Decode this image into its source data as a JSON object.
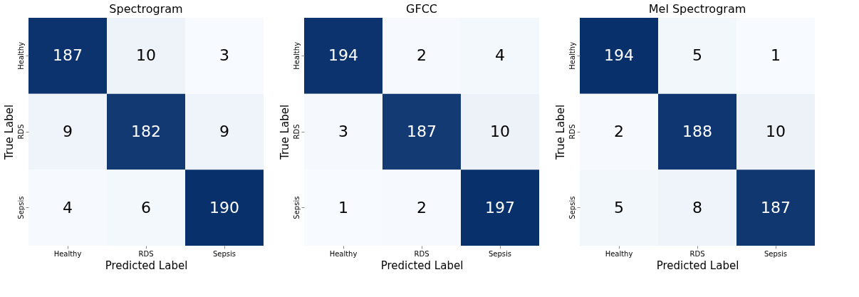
{
  "chart_data": [
    {
      "type": "heatmap",
      "title": "Spectrogram",
      "xlabel": "Predicted Label",
      "ylabel": "True Label",
      "categories": [
        "Healthy",
        "RDS",
        "Sepsis"
      ],
      "y_categories": [
        "Healthy",
        "RDS",
        "Sepsis"
      ],
      "cells": [
        [
          187,
          10,
          3
        ],
        [
          9,
          182,
          9
        ],
        [
          4,
          6,
          190
        ]
      ],
      "data_labels": true
    },
    {
      "type": "heatmap",
      "title": "GFCC",
      "xlabel": "Predicted Label",
      "ylabel": "True Label",
      "categories": [
        "Healthy",
        "RDS",
        "Sepsis"
      ],
      "y_categories": [
        "Healthy",
        "RDS",
        "Sepsis"
      ],
      "cells": [
        [
          194,
          2,
          4
        ],
        [
          3,
          187,
          10
        ],
        [
          1,
          2,
          197
        ]
      ],
      "data_labels": true
    },
    {
      "type": "heatmap",
      "title": "Mel Spectrogram",
      "xlabel": "Predicted Label",
      "ylabel": "True Label",
      "categories": [
        "Healthy",
        "RDS",
        "Sepsis"
      ],
      "y_categories": [
        "Healthy",
        "RDS",
        "Sepsis"
      ],
      "cells": [
        [
          194,
          5,
          1
        ],
        [
          2,
          188,
          10
        ],
        [
          5,
          8,
          187
        ]
      ],
      "data_labels": true
    }
  ]
}
